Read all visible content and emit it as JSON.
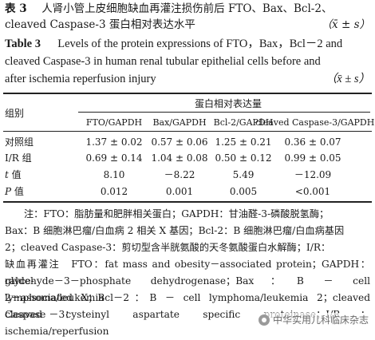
{
  "caption_cn": {
    "label": "表 3",
    "title_line1": "人肾小管上皮细胞缺血再灌注损伤前后 FTO、Bax、Bcl-2、",
    "title_line2": "cleaved Caspase-3 蛋白相对表达水平",
    "stat": "（x̄ ± s）"
  },
  "caption_en": {
    "label": "Table 3",
    "line1": "Levels of the protein expressions of FTO，Bax，Bcl－2 and",
    "line2": "cleaved Caspase-3 in human renal tubular epithelial cells before and",
    "line3": "after ischemia reperfusion injury",
    "stat": "（x̄ ± s）"
  },
  "table": {
    "group_header": "组别",
    "span_header": "蛋白相对表达量",
    "columns": [
      "FTO/GAPDH",
      "Bax/GAPDH",
      "Bcl-2/GAPDH",
      "cleaved Caspase-3/GAPDH"
    ],
    "rows": [
      {
        "label": "对照组",
        "values": [
          "1.37 ± 0.02",
          "0.57 ± 0.06",
          "1.25 ± 0.21",
          "0.36 ± 0.07"
        ]
      },
      {
        "label": "I/R 组",
        "values": [
          "0.69 ± 0.14",
          "1.04 ± 0.08",
          "0.50 ± 0.12",
          "0.99 ± 0.05"
        ]
      },
      {
        "label_italic": "t",
        "label_rest": " 值",
        "values": [
          "8.10",
          "－8.22",
          "5.49",
          "－12.09"
        ]
      },
      {
        "label_italic": "P",
        "label_rest": " 值",
        "values": [
          "0.012",
          "0.001",
          "0.005",
          "<0.001"
        ]
      }
    ]
  },
  "note": {
    "line1": "注：FTO：脂肪量和肥胖相关蛋白；GAPDH：甘油醛-3-磷酸脱氢酶；",
    "line2": "Bax：B 细胞淋巴瘤/白血病 2 相关 X 基因；Bcl-2：B 细胞淋巴瘤/白血病基因",
    "line3": "2；cleaved Caspase-3：剪切型含半胱氨酸的天冬氨酸蛋白水解酶；I/R：",
    "line4": "缺血再灌注　FTO：fat mass and obesity－associated protein；GAPDH：glyce-",
    "line5": "raldehyde－3－phosphate dehydrogenase；Bax：B － cell lymphoma/leukemia",
    "line6": "2－associated X；Bcl－2：B － cell lymphoma/leukemia 2；cleaved Caspase －3：",
    "line7": "cleaved cysteinyl aspartate specific proteinase；I/R：ischemia/reperfusion"
  },
  "watermark": {
    "text": "中华实用儿科临床杂志",
    "icon": "wechat-icon"
  }
}
